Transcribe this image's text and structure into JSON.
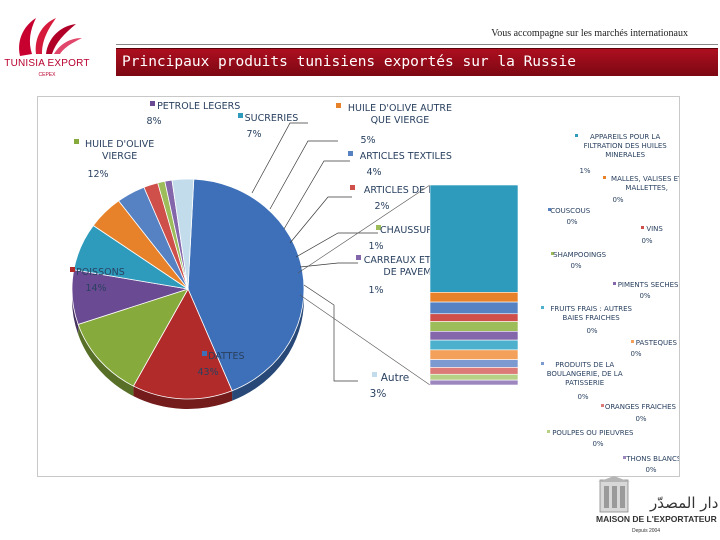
{
  "header": {
    "tagline": "Vous accompagne sur les marchés internationaux",
    "logo_text": "TUNISIA EXPORT",
    "logo_sub": "CEPEX",
    "banner_title": "Principaux produits tunisiens exportés sur la Russie"
  },
  "footer": {
    "arabic": "دار المصدّر",
    "maison": "MAISON DE L'EXPORTATEUR",
    "depuis": "Depuis 2004"
  },
  "chart_data": {
    "type": "pie",
    "title": "",
    "slices": [
      {
        "label": "DATTES",
        "value": 43,
        "display": "43%",
        "color": "#3d70b8"
      },
      {
        "label": "POISSONS",
        "value": 14,
        "display": "14%",
        "color": "#b22b2b"
      },
      {
        "label": "HUILE D'OLIVE VIERGE",
        "value": 12,
        "display": "12%",
        "color": "#87aa3c"
      },
      {
        "label": "PETROLE LEGERS",
        "value": 8,
        "display": "8%",
        "color": "#6b4a94"
      },
      {
        "label": "SUCRERIES",
        "value": 7,
        "display": "7%",
        "color": "#2e9bbd"
      },
      {
        "label": "HUILE D'OLIVE AUTRE QUE VIERGE",
        "value": 5,
        "display": "5%",
        "color": "#e8822a"
      },
      {
        "label": "ARTICLES TEXTILES",
        "value": 4,
        "display": "4%",
        "color": "#5682c4"
      },
      {
        "label": "ARTICLES DE FRIPERIE",
        "value": 2,
        "display": "2%",
        "color": "#cf4f4a"
      },
      {
        "label": "CHAUSSURES",
        "value": 1,
        "display": "1%",
        "color": "#9cbd5a"
      },
      {
        "label": "CARREAUX ET DALLES DE PAVEMENT",
        "value": 1,
        "display": "1%",
        "color": "#8466aa"
      },
      {
        "label": "Autre",
        "value": 3,
        "display": "3%",
        "color": "#c3dcec"
      }
    ],
    "breakdown": {
      "of": "Autre",
      "items": [
        {
          "label": "APPAREILS POUR LA FILTRATION DES HUILES MINERALES",
          "display": "1%",
          "color": "#2e9bbd"
        },
        {
          "label": "MALLES, VALISES ET MALLETTES,",
          "display": "0%",
          "color": "#e8822a"
        },
        {
          "label": "COUSCOUS",
          "display": "0%",
          "color": "#5682c4"
        },
        {
          "label": "VINS",
          "display": "0%",
          "color": "#cf4f4a"
        },
        {
          "label": "SHAMPOOINGS",
          "display": "0%",
          "color": "#9cbd5a"
        },
        {
          "label": "PIMENTS SECHES",
          "display": "0%",
          "color": "#8466aa"
        },
        {
          "label": "FRUITS FRAIS : AUTRES BAIES FRAICHES",
          "display": "0%",
          "color": "#4db0cc"
        },
        {
          "label": "PASTEQUES FRAICHES",
          "display": "0%",
          "color": "#f2a05a"
        },
        {
          "label": "PRODUITS DE LA BOULANGERIE, DE LA PATISSERIE",
          "display": "0%",
          "color": "#7c9ad0"
        },
        {
          "label": "ORANGES FRAICHES",
          "display": "0%",
          "color": "#db7a76"
        },
        {
          "label": "POULPES OU PIEUVRES",
          "display": "0%",
          "color": "#b6d086"
        },
        {
          "label": "THONS BLANCS",
          "display": "0%",
          "color": "#9d86bd"
        }
      ]
    }
  }
}
